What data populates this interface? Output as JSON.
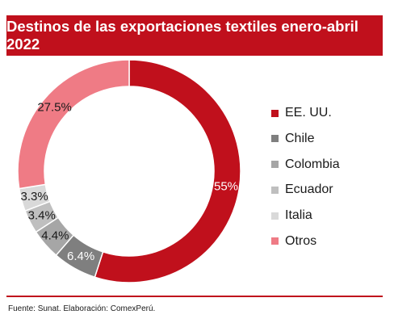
{
  "header": {
    "title": "Destinos de las exportaciones textiles enero-abril 2022"
  },
  "chart_data": {
    "type": "pie",
    "title": "Destinos de las exportaciones textiles enero-abril 2022",
    "donut": true,
    "legend_position": "right",
    "slices": [
      {
        "label": "EE. UU.",
        "value": 55,
        "value_label": "55%",
        "color": "#c0101c",
        "label_color": "#ffffff"
      },
      {
        "label": "Chile",
        "value": 6.4,
        "value_label": "6.4%",
        "color": "#7f7f7f",
        "label_color": "#ffffff"
      },
      {
        "label": "Colombia",
        "value": 4.4,
        "value_label": "4.4%",
        "color": "#a6a6a6",
        "label_color": "#1a1a1a"
      },
      {
        "label": "Ecuador",
        "value": 3.4,
        "value_label": "3.4%",
        "color": "#bfbfbf",
        "label_color": "#1a1a1a"
      },
      {
        "label": "Italia",
        "value": 3.3,
        "value_label": "3.3%",
        "color": "#d9d9d9",
        "label_color": "#1a1a1a"
      },
      {
        "label": "Otros",
        "value": 27.5,
        "value_label": "27.5%",
        "color": "#ef7b85",
        "label_color": "#1a1a1a"
      }
    ]
  },
  "footer": {
    "source": "Fuente: Sunat. Elaboración: ComexPerú."
  }
}
